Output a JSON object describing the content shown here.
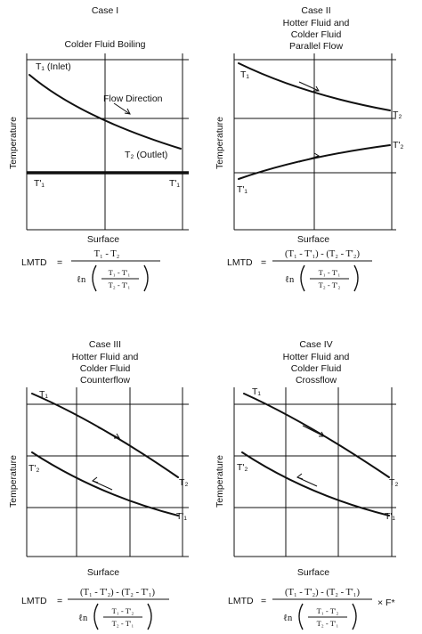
{
  "axis_label_y": "Temperature",
  "axis_label_x": "Surface",
  "lmtd_label": "LMTD",
  "ln_symbol": "ℓn",
  "cases": [
    {
      "title_lines": [
        "Case I",
        "Colder Fluid Boiling"
      ],
      "labels": {
        "t1_inlet": "T₁ (Inlet)",
        "flow": "Flow Direction",
        "t2_outlet": "T₂ (Outlet)",
        "t1p_left": "T'₁",
        "t1p_right": "T'₁"
      },
      "formula": {
        "numerator": "T₁ - T₂",
        "ln_num": "T₁ - T'₁",
        "ln_den": "T₂ - T'₁"
      }
    },
    {
      "title_lines": [
        "Case II",
        "Hotter Fluid and",
        "Colder Fluid",
        "Parallel Flow"
      ],
      "labels": {
        "t1": "T₁",
        "t2": "T₂",
        "t2p": "T'₂",
        "t1p": "T'₁"
      },
      "formula": {
        "numerator": "(T₁ - T'₁) - (T₂ - T'₂)",
        "ln_num": "T₁ - T'₁",
        "ln_den": "T₂ - T'₂"
      }
    },
    {
      "title_lines": [
        "Case III",
        "Hotter Fluid and",
        "Colder Fluid",
        "Counterflow"
      ],
      "labels": {
        "t1": "T₁",
        "t2p": "T'₂",
        "t2": "T₂",
        "t1p": "T'₁"
      },
      "formula": {
        "numerator": "(T₁ - T'₂) - (T₂ - T'₁)",
        "ln_num": "T₁ - T'₂",
        "ln_den": "T₂ - T'₁"
      }
    },
    {
      "title_lines": [
        "Case IV",
        "Hotter Fluid and",
        "Colder Fluid",
        "Crossflow"
      ],
      "labels": {
        "t1": "T₁",
        "t2p": "T'₂",
        "t2": "T₂",
        "t1p": "T'₁"
      },
      "formula": {
        "numerator": "(T₁ - T'₂) - (T₂ - T'₁)",
        "ln_num": "T₁ - T'₂",
        "ln_den": "T₂ - T'₁",
        "factor": "× F*"
      }
    }
  ]
}
